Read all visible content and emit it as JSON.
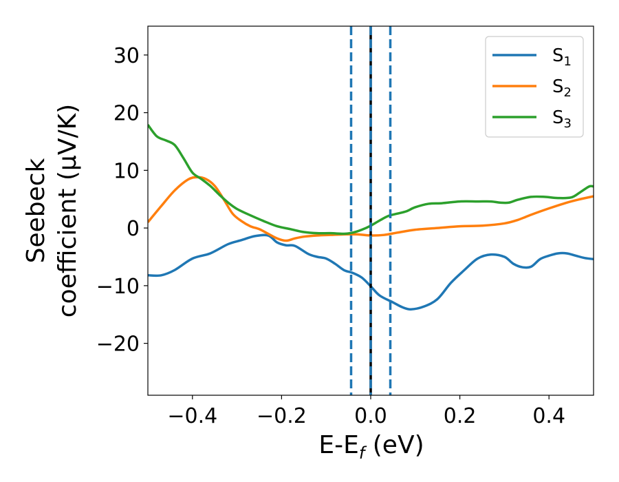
{
  "chart_data": {
    "type": "line",
    "title": "",
    "xlabel": {
      "main": "E-E",
      "sub": "f",
      "unit": " (eV)"
    },
    "ylabel": {
      "line1": "Seebeck",
      "line2": "coefficient  (μV/K)"
    },
    "xlim": [
      -0.5,
      0.5
    ],
    "ylim": [
      -29,
      35
    ],
    "xticks": [
      -0.4,
      -0.2,
      0.0,
      0.2,
      0.4
    ],
    "xtick_labels": [
      "−0.4",
      "−0.2",
      "0.0",
      "0.2",
      "0.4"
    ],
    "yticks": [
      -20,
      -10,
      0,
      10,
      20,
      30
    ],
    "ytick_labels": [
      "−20",
      "−10",
      "0",
      "10",
      "20",
      "30"
    ],
    "grid": false,
    "legend_position": "top-right",
    "vertical_lines": [
      {
        "x": -0.044,
        "style": "dashed",
        "color": "#1f77b4"
      },
      {
        "x": 0.044,
        "style": "dashed",
        "color": "#1f77b4"
      },
      {
        "x": 0.0,
        "style": "solid",
        "color": "#000000"
      },
      {
        "x": 0.0,
        "style": "dashed",
        "color": "#1f77b4"
      }
    ],
    "series": [
      {
        "name": "S",
        "sub": "1",
        "color": "#1f77b4",
        "x": [
          -0.5,
          -0.47,
          -0.44,
          -0.4,
          -0.36,
          -0.32,
          -0.29,
          -0.26,
          -0.23,
          -0.21,
          -0.19,
          -0.17,
          -0.14,
          -0.12,
          -0.1,
          -0.08,
          -0.06,
          -0.04,
          -0.02,
          0.0,
          0.02,
          0.05,
          0.07,
          0.09,
          0.12,
          0.15,
          0.18,
          0.21,
          0.24,
          0.27,
          0.3,
          0.32,
          0.34,
          0.36,
          0.38,
          0.4,
          0.42,
          0.44,
          0.46,
          0.48,
          0.5
        ],
        "values": [
          -8.2,
          -8.2,
          -7.3,
          -5.3,
          -4.4,
          -2.8,
          -2.1,
          -1.4,
          -1.3,
          -2.5,
          -3.0,
          -3.1,
          -4.5,
          -5.0,
          -5.3,
          -6.2,
          -7.3,
          -7.8,
          -8.6,
          -10.1,
          -11.7,
          -12.9,
          -13.7,
          -14.1,
          -13.6,
          -12.3,
          -9.5,
          -7.3,
          -5.3,
          -4.6,
          -5.0,
          -6.2,
          -6.8,
          -6.7,
          -5.4,
          -4.8,
          -4.4,
          -4.4,
          -4.8,
          -5.2,
          -5.4
        ]
      },
      {
        "name": "S",
        "sub": "2",
        "color": "#ff7f0e",
        "x": [
          -0.5,
          -0.47,
          -0.44,
          -0.41,
          -0.39,
          -0.37,
          -0.35,
          -0.33,
          -0.31,
          -0.29,
          -0.27,
          -0.25,
          -0.23,
          -0.21,
          -0.19,
          -0.17,
          -0.15,
          -0.12,
          -0.09,
          -0.06,
          -0.03,
          0.0,
          0.03,
          0.06,
          0.1,
          0.15,
          0.2,
          0.25,
          0.3,
          0.33,
          0.36,
          0.4,
          0.44,
          0.47,
          0.5
        ],
        "values": [
          1.0,
          3.8,
          6.5,
          8.4,
          8.8,
          8.5,
          7.3,
          5.0,
          2.5,
          1.2,
          0.3,
          -0.2,
          -1.0,
          -1.8,
          -2.2,
          -1.8,
          -1.5,
          -1.3,
          -1.2,
          -1.1,
          -1.1,
          -1.3,
          -1.2,
          -0.8,
          -0.3,
          0.0,
          0.3,
          0.4,
          0.8,
          1.4,
          2.3,
          3.4,
          4.4,
          5.0,
          5.5
        ]
      },
      {
        "name": "S",
        "sub": "3",
        "color": "#2ca02c",
        "x": [
          -0.5,
          -0.48,
          -0.46,
          -0.44,
          -0.42,
          -0.4,
          -0.38,
          -0.36,
          -0.34,
          -0.32,
          -0.3,
          -0.27,
          -0.24,
          -0.21,
          -0.18,
          -0.15,
          -0.12,
          -0.09,
          -0.06,
          -0.04,
          -0.02,
          0.0,
          0.02,
          0.04,
          0.06,
          0.08,
          0.1,
          0.13,
          0.16,
          0.2,
          0.24,
          0.27,
          0.29,
          0.31,
          0.33,
          0.36,
          0.39,
          0.42,
          0.45,
          0.47,
          0.49,
          0.5
        ],
        "values": [
          17.9,
          15.9,
          15.2,
          14.4,
          12.1,
          9.6,
          8.5,
          7.3,
          5.8,
          4.4,
          3.3,
          2.2,
          1.2,
          0.3,
          -0.2,
          -0.7,
          -0.9,
          -0.9,
          -1.0,
          -0.8,
          -0.3,
          0.4,
          1.3,
          2.1,
          2.5,
          2.9,
          3.6,
          4.2,
          4.3,
          4.6,
          4.6,
          4.6,
          4.4,
          4.4,
          4.9,
          5.4,
          5.4,
          5.2,
          5.3,
          6.2,
          7.2,
          7.2
        ]
      }
    ]
  }
}
